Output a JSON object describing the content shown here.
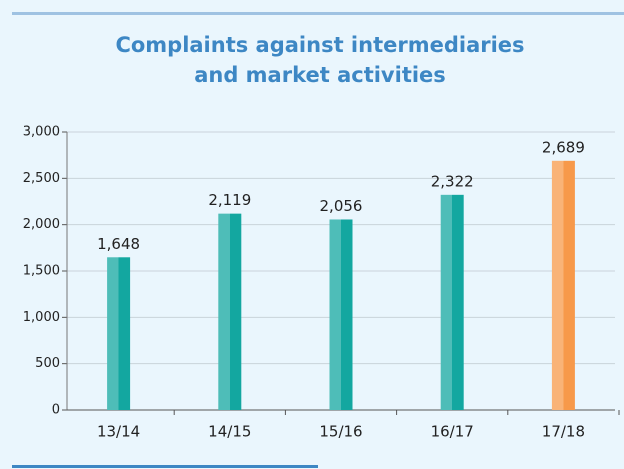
{
  "chart_data": {
    "type": "bar",
    "title": [
      "Complaints against intermediaries",
      "and market activities"
    ],
    "categories": [
      "13/14",
      "14/15",
      "15/16",
      "16/17",
      "17/18"
    ],
    "values": [
      1648,
      2119,
      2056,
      2322,
      2689
    ],
    "value_labels": [
      "1,648",
      "2,119",
      "2,056",
      "2,322",
      "2,689"
    ],
    "colors": [
      "#13a7a0",
      "#13a7a0",
      "#13a7a0",
      "#13a7a0",
      "#f7994a"
    ],
    "ylim": [
      0,
      3000
    ],
    "yticks": [
      0,
      500,
      {
        "value": 1000,
        "label": "1,000"
      },
      {
        "value": 1500,
        "label": "1,500"
      },
      {
        "value": 2000,
        "label": "2,000"
      },
      {
        "value": 2500,
        "label": "2,500"
      },
      {
        "value": 3000,
        "label": "3,000"
      }
    ],
    "grid": true
  }
}
